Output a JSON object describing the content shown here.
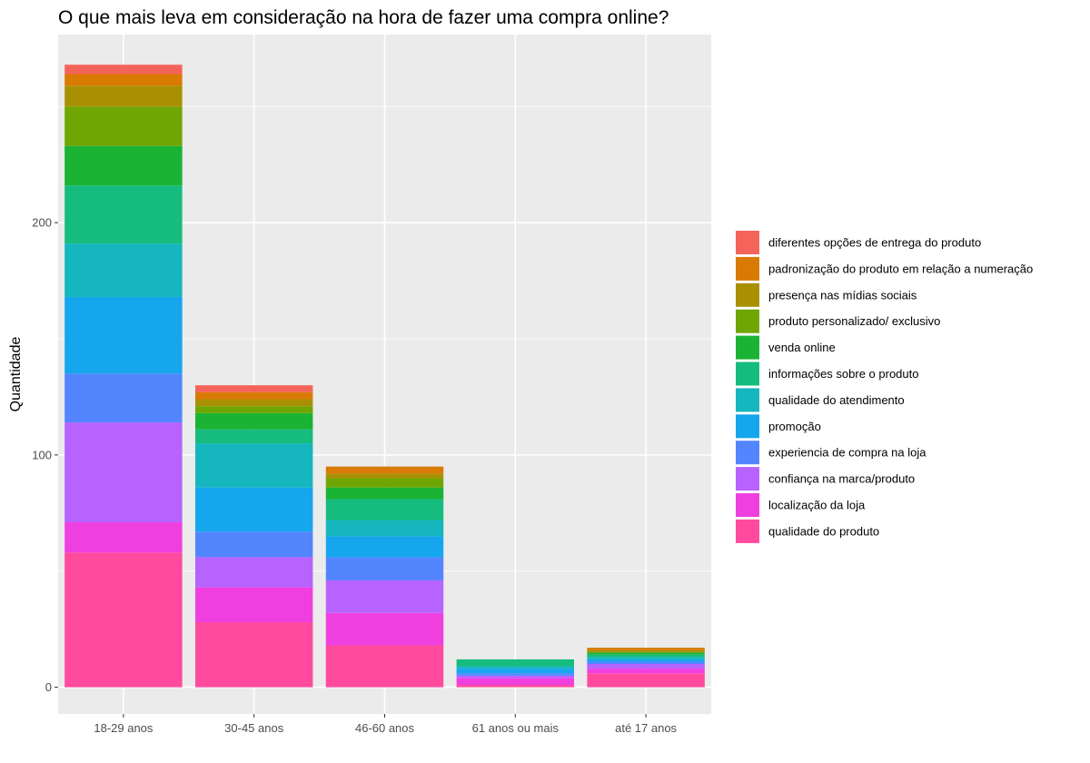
{
  "chart_data": {
    "type": "bar",
    "stacked": true,
    "title": "O que mais leva em consideração na hora de fazer uma compra online?",
    "xlabel": "",
    "ylabel": "Quantidade",
    "ylim": [
      -11.5,
      281
    ],
    "yticks": [
      0,
      100,
      200
    ],
    "grid": true,
    "legend_position": "right",
    "categories": [
      "18-29 anos",
      "30-45 anos",
      "46-60 anos",
      "61 anos ou mais",
      "até 17 anos"
    ],
    "series": [
      {
        "name": "qualidade do produto",
        "color": "#FF4A9E",
        "values": [
          58,
          28,
          18,
          1,
          6
        ]
      },
      {
        "name": "localização da loja",
        "color": "#F03FDF",
        "values": [
          13,
          15,
          14,
          3,
          2
        ]
      },
      {
        "name": "confiança na marca/produto",
        "color": "#B763FF",
        "values": [
          43,
          13,
          14,
          1,
          2
        ]
      },
      {
        "name": "experiencia de compra na loja",
        "color": "#5385FF",
        "values": [
          21,
          11,
          10,
          1,
          1
        ]
      },
      {
        "name": "promoção",
        "color": "#16A6EE",
        "values": [
          33,
          19,
          9,
          2,
          1
        ]
      },
      {
        "name": "qualidade do atendimento",
        "color": "#16B6BE",
        "values": [
          23,
          19,
          7,
          1,
          1
        ]
      },
      {
        "name": "informações sobre o produto",
        "color": "#16BC7E",
        "values": [
          25,
          6,
          9,
          3,
          1
        ]
      },
      {
        "name": "venda online",
        "color": "#1AB334",
        "values": [
          17,
          7,
          5,
          0,
          1
        ]
      },
      {
        "name": "produto personalizado/ exclusivo",
        "color": "#6FA603",
        "values": [
          17,
          3,
          4,
          0,
          0
        ]
      },
      {
        "name": "presença nas mídias sociais",
        "color": "#A99003",
        "values": [
          9,
          3,
          2,
          0,
          1
        ]
      },
      {
        "name": "padronização do produto em relação a numeração",
        "color": "#D97A03",
        "values": [
          5,
          3,
          3,
          0,
          1
        ]
      },
      {
        "name": "diferentes opções de entrega do produto",
        "color": "#F5645B",
        "values": [
          4,
          3,
          0,
          0,
          0
        ]
      }
    ],
    "legend_order": [
      11,
      10,
      9,
      8,
      7,
      6,
      5,
      4,
      3,
      2,
      1,
      0
    ]
  }
}
